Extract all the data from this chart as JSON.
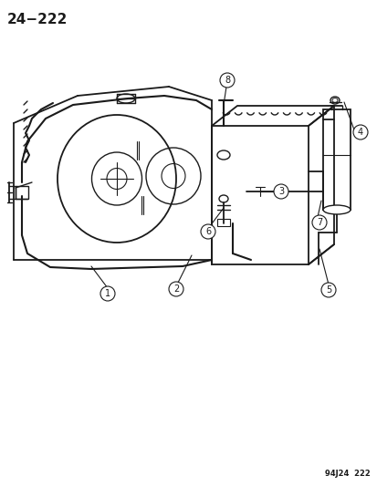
{
  "title": "24−222",
  "footer": "94J24  222",
  "bg_color": "#ffffff",
  "line_color": "#1a1a1a",
  "fig_w": 4.14,
  "fig_h": 5.33,
  "dpi": 100,
  "title_fs": 11,
  "footer_fs": 6,
  "callout_r": 0.013,
  "callout_fs": 6.5
}
